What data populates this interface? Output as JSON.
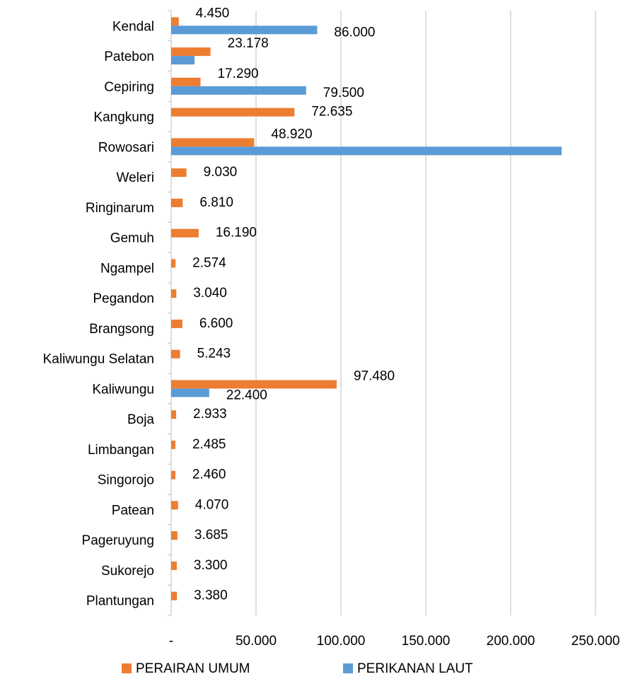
{
  "chart_data": {
    "type": "hbar",
    "categories": [
      "Kendal",
      "Patebon",
      "Cepiring",
      "Kangkung",
      "Rowosari",
      "Weleri",
      "Ringinarum",
      "Gemuh",
      "Ngampel",
      "Pegandon",
      "Brangsong",
      "Kaliwungu Selatan",
      "Kaliwungu",
      "Boja",
      "Limbangan",
      "Singorojo",
      "Patean",
      "Pageruyung",
      "Sukorejo",
      "Plantungan"
    ],
    "series": [
      {
        "name": "PERAIRAN UMUM",
        "color": "#ed7d31",
        "values": [
          4450,
          23178,
          17290,
          72635,
          48920,
          9030,
          6810,
          16190,
          2574,
          3040,
          6600,
          5243,
          97480,
          2933,
          2485,
          2460,
          4070,
          3685,
          3300,
          3380
        ],
        "value_labels": [
          "4.450",
          "23.178",
          "17.290",
          "72.635",
          "48.920",
          "9.030",
          "6.810",
          "16.190",
          "2.574",
          "3.040",
          "6.600",
          "5.243",
          "97.480",
          "2.933",
          "2.485",
          "2.460",
          "4.070",
          "3.685",
          "3.300",
          "3.380"
        ]
      },
      {
        "name": "PERIKANAN LAUT",
        "color": "#5b9bd5",
        "values": [
          86000,
          13750,
          79500,
          null,
          230000,
          null,
          null,
          null,
          null,
          null,
          null,
          null,
          22400,
          null,
          null,
          null,
          null,
          null,
          null,
          null
        ],
        "value_labels": [
          "86.000",
          null,
          "79.500",
          null,
          null,
          null,
          null,
          null,
          null,
          null,
          null,
          null,
          "22.400",
          null,
          null,
          null,
          null,
          null,
          null,
          null
        ]
      }
    ],
    "xlim": [
      0,
      250000
    ],
    "xticks": [
      {
        "value": 0,
        "label": "-"
      },
      {
        "value": 50000,
        "label": "50.000"
      },
      {
        "value": 100000,
        "label": "100.000"
      },
      {
        "value": 150000,
        "label": "150.000"
      },
      {
        "value": 200000,
        "label": "200.000"
      },
      {
        "value": 250000,
        "label": "250.000"
      }
    ],
    "grid": true
  }
}
